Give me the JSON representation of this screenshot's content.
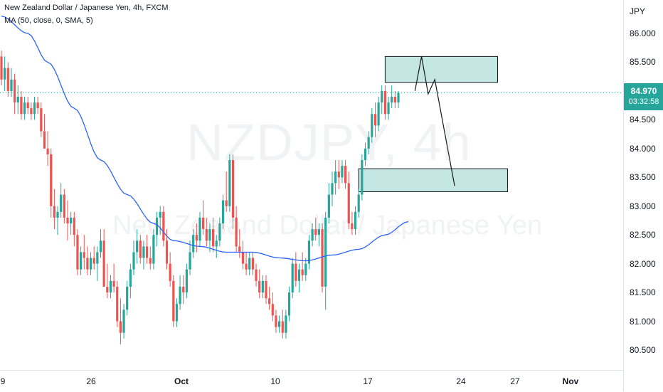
{
  "legend": {
    "title": "New Zealand Dollar / Japanese Yen, 4h, FXCM",
    "ma": "MA (50, close, 0, SMA, 5)"
  },
  "watermark": {
    "symbol": "NZDJPY, 4h",
    "name": "New Zealand Dollar / Japanese Yen"
  },
  "price_axis": {
    "currency": "JPY",
    "ticks": [
      "86.000",
      "85.500",
      "85.000",
      "84.500",
      "84.000",
      "83.500",
      "83.000",
      "82.500",
      "82.000",
      "81.500",
      "81.000",
      "80.500"
    ],
    "tick_values": [
      86.0,
      85.5,
      85.0,
      84.5,
      84.0,
      83.5,
      83.0,
      82.5,
      82.0,
      81.5,
      81.0,
      80.5
    ]
  },
  "last_price": {
    "value": "84.970",
    "countdown": "03:32:58"
  },
  "time_axis": {
    "labels": [
      {
        "text": "9",
        "bold": false
      },
      {
        "text": "26",
        "bold": false
      },
      {
        "text": "Oct",
        "bold": true
      },
      {
        "text": "10",
        "bold": false
      },
      {
        "text": "17",
        "bold": false
      },
      {
        "text": "24",
        "bold": false
      },
      {
        "text": "27",
        "bold": false
      },
      {
        "text": "Nov",
        "bold": true
      }
    ]
  },
  "colors": {
    "up": "#26a69a",
    "down": "#ef5350",
    "ma": "#2962ff",
    "zone_fill": "#b2dfdb",
    "projection": "#131722"
  },
  "chart_data": {
    "type": "candlestick",
    "symbol": "NZDJPY",
    "timeframe": "4h",
    "ylim": [
      80.2,
      86.4
    ],
    "grid": false,
    "last_price": 84.97,
    "candles": [
      [
        85.6,
        85.7,
        85.1,
        85.2
      ],
      [
        85.2,
        85.6,
        85.0,
        85.4
      ],
      [
        85.4,
        85.5,
        84.9,
        85.0
      ],
      [
        85.0,
        85.4,
        84.9,
        85.2
      ],
      [
        85.2,
        85.3,
        84.6,
        84.8
      ],
      [
        84.8,
        85.1,
        84.6,
        84.9
      ],
      [
        84.9,
        85.0,
        84.5,
        84.6
      ],
      [
        84.6,
        84.9,
        84.5,
        84.8
      ],
      [
        84.8,
        84.9,
        84.6,
        84.7
      ],
      [
        84.7,
        84.8,
        84.5,
        84.6
      ],
      [
        84.6,
        84.9,
        84.5,
        84.8
      ],
      [
        84.8,
        84.9,
        84.6,
        84.7
      ],
      [
        84.7,
        84.8,
        84.2,
        84.3
      ],
      [
        84.3,
        84.6,
        84.0,
        84.0
      ],
      [
        84.0,
        84.3,
        83.7,
        83.9
      ],
      [
        83.9,
        84.0,
        82.8,
        83.0
      ],
      [
        83.0,
        83.3,
        82.6,
        82.8
      ],
      [
        82.8,
        83.0,
        82.5,
        82.9
      ],
      [
        82.9,
        83.4,
        82.8,
        83.2
      ],
      [
        83.2,
        83.3,
        82.7,
        82.8
      ],
      [
        82.8,
        83.1,
        82.4,
        82.7
      ],
      [
        82.7,
        82.9,
        82.5,
        82.8
      ],
      [
        82.8,
        82.9,
        82.3,
        82.5
      ],
      [
        82.5,
        82.6,
        81.8,
        81.9
      ],
      [
        81.9,
        82.3,
        81.8,
        82.2
      ],
      [
        82.2,
        82.5,
        81.9,
        82.1
      ],
      [
        82.1,
        82.3,
        81.8,
        81.9
      ],
      [
        81.9,
        82.2,
        81.8,
        82.1
      ],
      [
        82.1,
        82.3,
        81.9,
        82.0
      ],
      [
        82.0,
        82.3,
        81.7,
        82.2
      ],
      [
        82.2,
        82.6,
        82.1,
        82.4
      ],
      [
        82.4,
        82.6,
        81.6,
        81.6
      ],
      [
        81.6,
        82.0,
        81.4,
        81.5
      ],
      [
        81.5,
        81.8,
        81.4,
        81.7
      ],
      [
        81.7,
        82.0,
        81.5,
        81.6
      ],
      [
        81.6,
        81.7,
        80.9,
        81.0
      ],
      [
        81.0,
        81.4,
        80.6,
        80.8
      ],
      [
        80.8,
        81.3,
        80.7,
        81.2
      ],
      [
        81.2,
        81.7,
        81.1,
        81.6
      ],
      [
        81.6,
        82.0,
        81.4,
        81.9
      ],
      [
        81.9,
        82.4,
        81.8,
        82.2
      ],
      [
        82.2,
        82.6,
        82.0,
        82.4
      ],
      [
        82.4,
        82.5,
        82.0,
        82.1
      ],
      [
        82.1,
        82.4,
        81.9,
        82.3
      ],
      [
        82.3,
        82.5,
        82.0,
        82.1
      ],
      [
        82.1,
        82.3,
        81.9,
        82.0
      ],
      [
        82.0,
        82.6,
        81.9,
        82.5
      ],
      [
        82.5,
        82.9,
        82.3,
        82.8
      ],
      [
        82.8,
        83.0,
        82.5,
        82.9
      ],
      [
        82.9,
        83.0,
        82.3,
        82.4
      ],
      [
        82.4,
        82.6,
        81.9,
        82.0
      ],
      [
        82.0,
        82.2,
        81.6,
        81.7
      ],
      [
        81.7,
        81.8,
        80.9,
        81.0
      ],
      [
        81.0,
        81.4,
        80.9,
        81.3
      ],
      [
        81.3,
        81.8,
        81.2,
        81.6
      ],
      [
        81.6,
        81.8,
        81.3,
        81.5
      ],
      [
        81.5,
        82.0,
        81.4,
        81.9
      ],
      [
        81.9,
        82.4,
        81.8,
        82.2
      ],
      [
        82.2,
        82.6,
        82.1,
        82.5
      ],
      [
        82.5,
        82.7,
        82.2,
        82.4
      ],
      [
        82.4,
        82.9,
        82.3,
        82.8
      ],
      [
        82.8,
        83.1,
        82.5,
        82.6
      ],
      [
        82.6,
        82.8,
        82.3,
        82.4
      ],
      [
        82.4,
        82.7,
        82.2,
        82.6
      ],
      [
        82.6,
        82.8,
        82.2,
        82.3
      ],
      [
        82.3,
        82.5,
        82.1,
        82.4
      ],
      [
        82.4,
        82.8,
        82.3,
        82.7
      ],
      [
        82.7,
        83.2,
        82.6,
        83.1
      ],
      [
        83.1,
        83.6,
        82.9,
        83.0
      ],
      [
        83.0,
        83.9,
        82.9,
        83.8
      ],
      [
        83.8,
        83.9,
        82.6,
        82.8
      ],
      [
        82.8,
        83.0,
        82.2,
        82.3
      ],
      [
        82.3,
        82.6,
        82.1,
        82.2
      ],
      [
        82.2,
        82.4,
        81.9,
        82.0
      ],
      [
        82.0,
        82.2,
        81.8,
        81.9
      ],
      [
        81.9,
        82.2,
        81.8,
        82.1
      ],
      [
        82.1,
        82.2,
        81.8,
        81.9
      ],
      [
        81.9,
        82.0,
        81.6,
        81.7
      ],
      [
        81.7,
        81.9,
        81.4,
        81.5
      ],
      [
        81.5,
        81.8,
        81.4,
        81.7
      ],
      [
        81.7,
        81.8,
        81.3,
        81.4
      ],
      [
        81.4,
        81.6,
        81.2,
        81.3
      ],
      [
        81.3,
        81.5,
        81.0,
        81.1
      ],
      [
        81.1,
        81.2,
        80.8,
        80.9
      ],
      [
        80.9,
        81.1,
        80.8,
        81.0
      ],
      [
        81.0,
        81.2,
        80.7,
        80.8
      ],
      [
        80.8,
        81.2,
        80.7,
        81.1
      ],
      [
        81.1,
        81.6,
        81.0,
        81.5
      ],
      [
        81.5,
        82.1,
        81.4,
        82.0
      ],
      [
        82.0,
        82.2,
        81.6,
        81.7
      ],
      [
        81.7,
        82.0,
        81.5,
        81.9
      ],
      [
        81.9,
        82.2,
        81.7,
        81.8
      ],
      [
        81.8,
        82.1,
        81.7,
        82.0
      ],
      [
        82.0,
        82.5,
        81.9,
        82.4
      ],
      [
        82.4,
        82.7,
        82.3,
        82.6
      ],
      [
        82.6,
        82.8,
        82.4,
        82.5
      ],
      [
        82.5,
        82.7,
        82.3,
        82.6
      ],
      [
        82.6,
        82.7,
        81.5,
        81.6
      ],
      [
        81.6,
        82.9,
        81.2,
        82.8
      ],
      [
        82.8,
        83.4,
        82.7,
        83.2
      ],
      [
        83.2,
        83.6,
        83.0,
        83.4
      ],
      [
        83.4,
        83.8,
        83.2,
        83.6
      ],
      [
        83.6,
        83.8,
        83.3,
        83.5
      ],
      [
        83.5,
        83.8,
        83.4,
        83.7
      ],
      [
        83.7,
        83.8,
        83.3,
        83.4
      ],
      [
        83.4,
        83.6,
        82.6,
        82.7
      ],
      [
        82.7,
        82.9,
        82.5,
        82.6
      ],
      [
        82.6,
        83.0,
        82.5,
        82.9
      ],
      [
        82.9,
        83.3,
        82.8,
        83.2
      ],
      [
        83.2,
        83.9,
        83.1,
        83.8
      ],
      [
        83.8,
        84.1,
        83.7,
        84.0
      ],
      [
        84.0,
        84.3,
        83.9,
        84.2
      ],
      [
        84.2,
        84.7,
        84.1,
        84.6
      ],
      [
        84.6,
        84.8,
        84.2,
        84.4
      ],
      [
        84.4,
        84.9,
        84.3,
        84.8
      ],
      [
        84.8,
        85.1,
        84.6,
        85.0
      ],
      [
        85.0,
        85.1,
        84.5,
        84.6
      ],
      [
        84.6,
        84.9,
        84.5,
        84.8
      ],
      [
        84.8,
        85.1,
        84.7,
        84.9
      ],
      [
        84.9,
        85.0,
        84.7,
        84.8
      ],
      [
        84.8,
        85.0,
        84.7,
        84.97
      ]
    ],
    "ma_anchors": [
      {
        "bar": 0,
        "value": 86.3
      },
      {
        "bar": 8,
        "value": 86.0
      },
      {
        "bar": 14,
        "value": 85.5
      },
      {
        "bar": 22,
        "value": 84.7
      },
      {
        "bar": 30,
        "value": 83.8
      },
      {
        "bar": 38,
        "value": 83.2
      },
      {
        "bar": 46,
        "value": 82.7
      },
      {
        "bar": 52,
        "value": 82.4
      },
      {
        "bar": 60,
        "value": 82.3
      },
      {
        "bar": 68,
        "value": 82.2
      },
      {
        "bar": 76,
        "value": 82.2
      },
      {
        "bar": 84,
        "value": 82.1
      },
      {
        "bar": 92,
        "value": 82.05
      },
      {
        "bar": 100,
        "value": 82.15
      },
      {
        "bar": 108,
        "value": 82.25
      },
      {
        "bar": 116,
        "value": 82.5
      },
      {
        "bar": 123,
        "value": 82.73
      }
    ],
    "zones": [
      {
        "start_bar": 116,
        "end_bar": 150,
        "top": 85.6,
        "bottom": 85.15
      },
      {
        "start_bar": 108,
        "end_bar": 153,
        "top": 83.65,
        "bottom": 83.25
      }
    ],
    "projection_path": [
      {
        "bar": 125,
        "value": 85.0
      },
      {
        "bar": 127,
        "value": 85.6
      },
      {
        "bar": 129,
        "value": 84.95
      },
      {
        "bar": 131,
        "value": 85.2
      },
      {
        "bar": 137,
        "value": 83.35
      }
    ]
  }
}
